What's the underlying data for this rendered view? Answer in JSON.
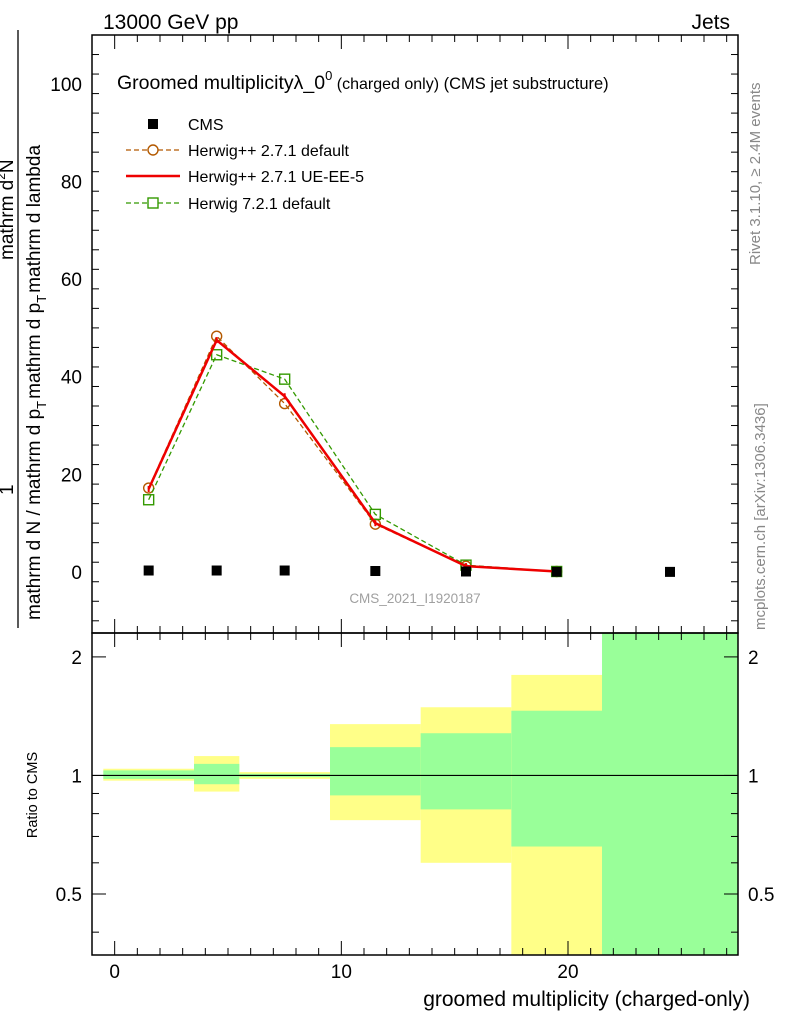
{
  "header": {
    "left": "13000 GeV pp",
    "right": "Jets"
  },
  "side_labels": {
    "rivet": "Rivet 3.1.10, ≥ 2.4M events",
    "mcplots": "mcplots.cern.ch [arXiv:1306.3436]"
  },
  "chart_data": {
    "type": "line",
    "title": "Groomed multiplicityλ_0",
    "title_superscript": "0",
    "title_suffix_small": " (charged only)",
    "title_suffix": " (CMS jet substructure)",
    "watermark": "CMS_2021_I1920187",
    "ylabel_num": "1",
    "ylabel_den": "mathrm d N / mathrm d p",
    "ylabel_den_sub": "T",
    "ylabel_main": "mathrm d p",
    "ylabel_main_sub": "T",
    "ylabel_frac_top": "mathrm d",
    "ylabel_frac_top_sup": "2",
    "ylabel_frac_top_end": "N",
    "ylabel_frac_bot": "mathrm d lambda",
    "ylabel_mid": "mathrm d",
    "ratio_ylabel": "Ratio to CMS",
    "xlabel": "groomed multiplicity (charged-only)",
    "xlim": [
      -1,
      27.5
    ],
    "ylim": [
      -12.5,
      110
    ],
    "ratio_ylim": [
      0.35,
      2.3
    ],
    "xticks": [
      "0",
      "10",
      "20"
    ],
    "xtick_values": [
      0,
      10,
      20
    ],
    "yticks": [
      "0",
      "20",
      "40",
      "60",
      "80",
      "100"
    ],
    "ytick_values": [
      0,
      20,
      40,
      60,
      80,
      100
    ],
    "ratio_yticks": [
      "0.5",
      "1",
      "2"
    ],
    "ratio_ytick_values": [
      0.5,
      1,
      2
    ],
    "legend_position": "top-left",
    "series": [
      {
        "name": "CMS",
        "kind": "data",
        "color": "#000000",
        "x": [
          1.5,
          4.5,
          7.5,
          11.5,
          15.5,
          19.5,
          24.5
        ],
        "y": [
          0.3,
          0.3,
          0.3,
          0.2,
          0.1,
          0.05,
          0.02
        ]
      },
      {
        "name": "Herwig++ 2.7.1 default",
        "kind": "mc-circle-dashed",
        "color": "#b35900",
        "x": [
          1.5,
          4.5,
          7.5,
          11.5,
          15.5,
          19.5
        ],
        "y": [
          17.2,
          48.3,
          34.5,
          9.8,
          1.2,
          0.1
        ]
      },
      {
        "name": "Herwig++ 2.7.1 UE-EE-5",
        "kind": "mc-solid",
        "color": "#ee0000",
        "x": [
          1.5,
          4.5,
          7.5,
          11.5,
          15.5,
          19.5
        ],
        "y": [
          17.0,
          47.5,
          36.0,
          10.0,
          1.2,
          0.1
        ]
      },
      {
        "name": "Herwig 7.2.1 default",
        "kind": "mc-square-dashed",
        "color": "#339900",
        "x": [
          1.5,
          4.5,
          7.5,
          11.5,
          15.5,
          19.5
        ],
        "y": [
          14.8,
          44.5,
          39.5,
          11.8,
          1.4,
          0.1
        ]
      }
    ],
    "ratio_bands": {
      "yellow_color": "#ffff88",
      "green_color": "#99ff99",
      "bins": [
        {
          "x0": -0.5,
          "x1": 3.5,
          "yellow": [
            0.97,
            1.04
          ],
          "green": [
            0.98,
            1.03
          ]
        },
        {
          "x0": 3.5,
          "x1": 5.5,
          "yellow": [
            0.91,
            1.12
          ],
          "green": [
            0.95,
            1.07
          ]
        },
        {
          "x0": 5.5,
          "x1": 9.5,
          "yellow": [
            0.98,
            1.02
          ],
          "green": [
            0.99,
            1.01
          ]
        },
        {
          "x0": 9.5,
          "x1": 13.5,
          "yellow": [
            0.77,
            1.35
          ],
          "green": [
            0.89,
            1.18
          ]
        },
        {
          "x0": 13.5,
          "x1": 17.5,
          "yellow": [
            0.6,
            1.49
          ],
          "green": [
            0.82,
            1.28
          ]
        },
        {
          "x0": 17.5,
          "x1": 21.5,
          "yellow": [
            0.35,
            1.8
          ],
          "green": [
            0.66,
            1.46
          ]
        },
        {
          "x0": 21.5,
          "x1": 27.5,
          "yellow": [
            0.35,
            2.3
          ],
          "green": [
            0.35,
            2.3
          ]
        }
      ]
    }
  }
}
